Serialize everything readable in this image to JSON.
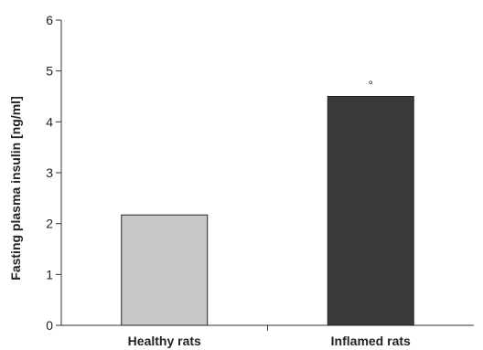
{
  "chart_data": {
    "type": "bar",
    "categories": [
      "Healthy rats",
      "Inflamed rats"
    ],
    "values": [
      2.17,
      4.5
    ],
    "ylabel": "Fasting plasma insulin [ng/ml]",
    "xlabel": "",
    "ylim": [
      0,
      6
    ],
    "yticks": [
      0,
      1,
      2,
      3,
      4,
      5,
      6
    ],
    "grid": false,
    "bar_colors": [
      "#c8c8c8",
      "#3a3a3a"
    ],
    "annotations": [
      {
        "category": "Inflamed rats",
        "text": "°"
      }
    ]
  }
}
